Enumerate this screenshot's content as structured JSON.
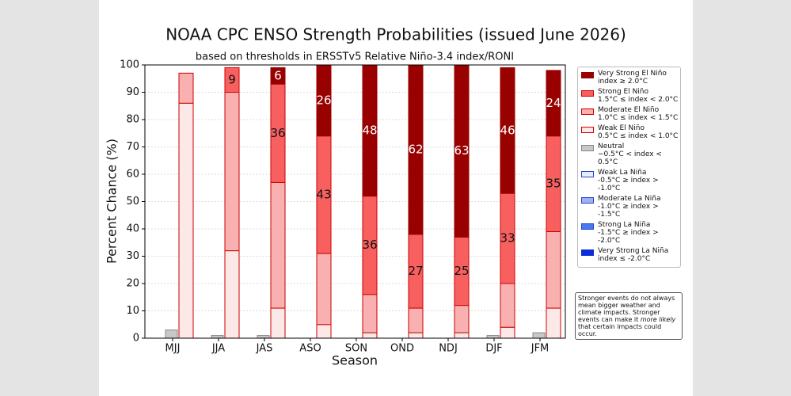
{
  "chart_data": {
    "type": "bar",
    "title": "NOAA CPC ENSO Strength Probabilities (issued June 2026)",
    "subtitle": "based on thresholds in ERSSTv5 Relative Niño-3.4 index/RONI",
    "x_label": "Season",
    "y_label": "Percent Chance (%)",
    "categories": [
      "MJJ",
      "JJA",
      "JAS",
      "ASO",
      "SON",
      "OND",
      "NDJ",
      "DJF",
      "JFM"
    ],
    "ylim": [
      0,
      100
    ],
    "yticks": [
      0,
      10,
      20,
      30,
      40,
      50,
      60,
      70,
      80,
      90,
      100
    ],
    "grid": true,
    "series": [
      {
        "name": "Very Strong El Niño\nindex ≥ 2.0°C",
        "stack": "right",
        "color": "#990000",
        "edgecolor": "#990000",
        "label_color": "#ffffff",
        "values": [
          0,
          0,
          6,
          26,
          48,
          62,
          63,
          46,
          24
        ],
        "value_labels": [
          null,
          null,
          "6",
          "26",
          "48",
          "62",
          "63",
          "46",
          "24"
        ]
      },
      {
        "name": "Strong El Niño\n1.5°C ≤ index < 2.0°C",
        "stack": "right",
        "color": "#f86060",
        "edgecolor": "#cc0000",
        "label_color": "#111111",
        "values": [
          0,
          9,
          36,
          43,
          36,
          27,
          25,
          33,
          35
        ],
        "value_labels": [
          null,
          "9",
          "36",
          "43",
          "36",
          "27",
          "25",
          "33",
          "35"
        ]
      },
      {
        "name": "Moderate El Niño\n1.0°C ≤ index < 1.5°C",
        "stack": "right",
        "color": "#f8b0b0",
        "edgecolor": "#cc0000",
        "values": [
          11,
          58,
          46,
          26,
          14,
          9,
          10,
          16,
          28
        ]
      },
      {
        "name": "Weak El Niño\n0.5°C ≤ index < 1.0°C",
        "stack": "right",
        "color": "#fde8e8",
        "edgecolor": "#cc0000",
        "values": [
          86,
          32,
          11,
          5,
          2,
          2,
          2,
          4,
          11
        ]
      },
      {
        "name": "Neutral\n−0.5°C < index < 0.5°C",
        "stack": "middle",
        "color": "#c8c8c8",
        "edgecolor": "#888888",
        "values": [
          3,
          1,
          1,
          0,
          0,
          0,
          0,
          1,
          2
        ]
      },
      {
        "name": "Weak La Niña\n-0.5°C ≥ index > -1.0°C",
        "stack": "left",
        "color": "#e6ecff",
        "edgecolor": "#2244cc",
        "values": [
          0,
          0,
          0,
          0,
          0,
          0,
          0,
          0,
          0
        ]
      },
      {
        "name": "Moderate La Niña\n-1.0°C ≥ index > -1.5°C",
        "stack": "left",
        "color": "#9db3f0",
        "edgecolor": "#2244cc",
        "values": [
          0,
          0,
          0,
          0,
          0,
          0,
          0,
          0,
          0
        ]
      },
      {
        "name": "Strong La Niña\n-1.5°C ≥ index > -2.0°C",
        "stack": "left",
        "color": "#4a78f0",
        "edgecolor": "#2244cc",
        "values": [
          0,
          0,
          0,
          0,
          0,
          0,
          0,
          0,
          0
        ]
      },
      {
        "name": "Very Strong La Niña\nindex ≤ -2.0°C",
        "stack": "left",
        "color": "#0b2dd6",
        "edgecolor": "#0b2dd6",
        "values": [
          0,
          0,
          0,
          0,
          0,
          0,
          0,
          0,
          0
        ]
      }
    ],
    "note": [
      "Stronger events do not always mean bigger weather and climate impacts. Stronger events can make it ",
      "more likely",
      " that certain impacts could occur."
    ]
  }
}
